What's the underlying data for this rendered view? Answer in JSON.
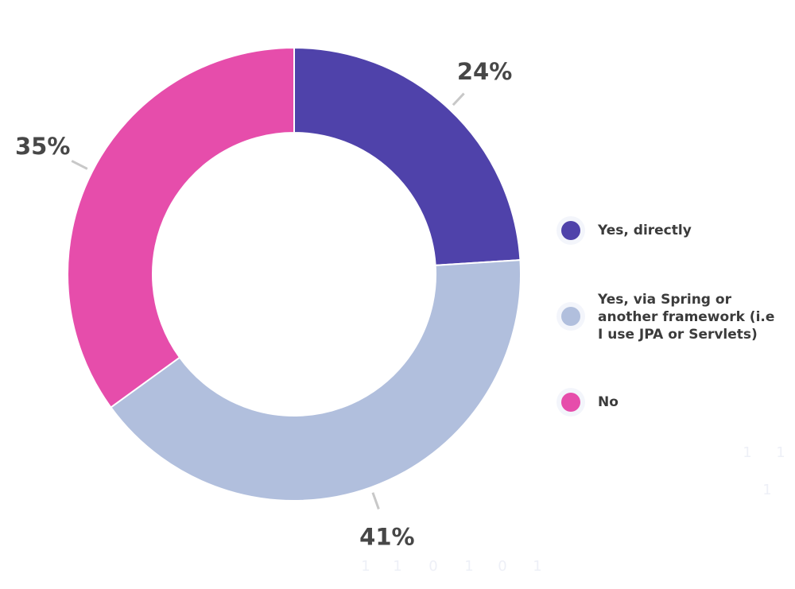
{
  "chart_data": {
    "type": "pie",
    "style": "donut",
    "title": "",
    "start_angle_deg": 0,
    "direction": "clockwise",
    "slices": [
      {
        "name": "Yes, directly",
        "value": 24,
        "label": "24%",
        "color": "#4f42aa"
      },
      {
        "name": "Yes, via Spring or another framework (i.e I use JPA or Servlets)",
        "value": 41,
        "label": "41%",
        "color": "#b1bfdd"
      },
      {
        "name": "No",
        "value": 35,
        "label": "35%",
        "color": "#e64dab"
      }
    ],
    "legend_position": "right",
    "background_watermark_digits": [
      "1",
      "1",
      "0",
      "1",
      "0",
      "1",
      "1",
      "1",
      "1"
    ]
  }
}
